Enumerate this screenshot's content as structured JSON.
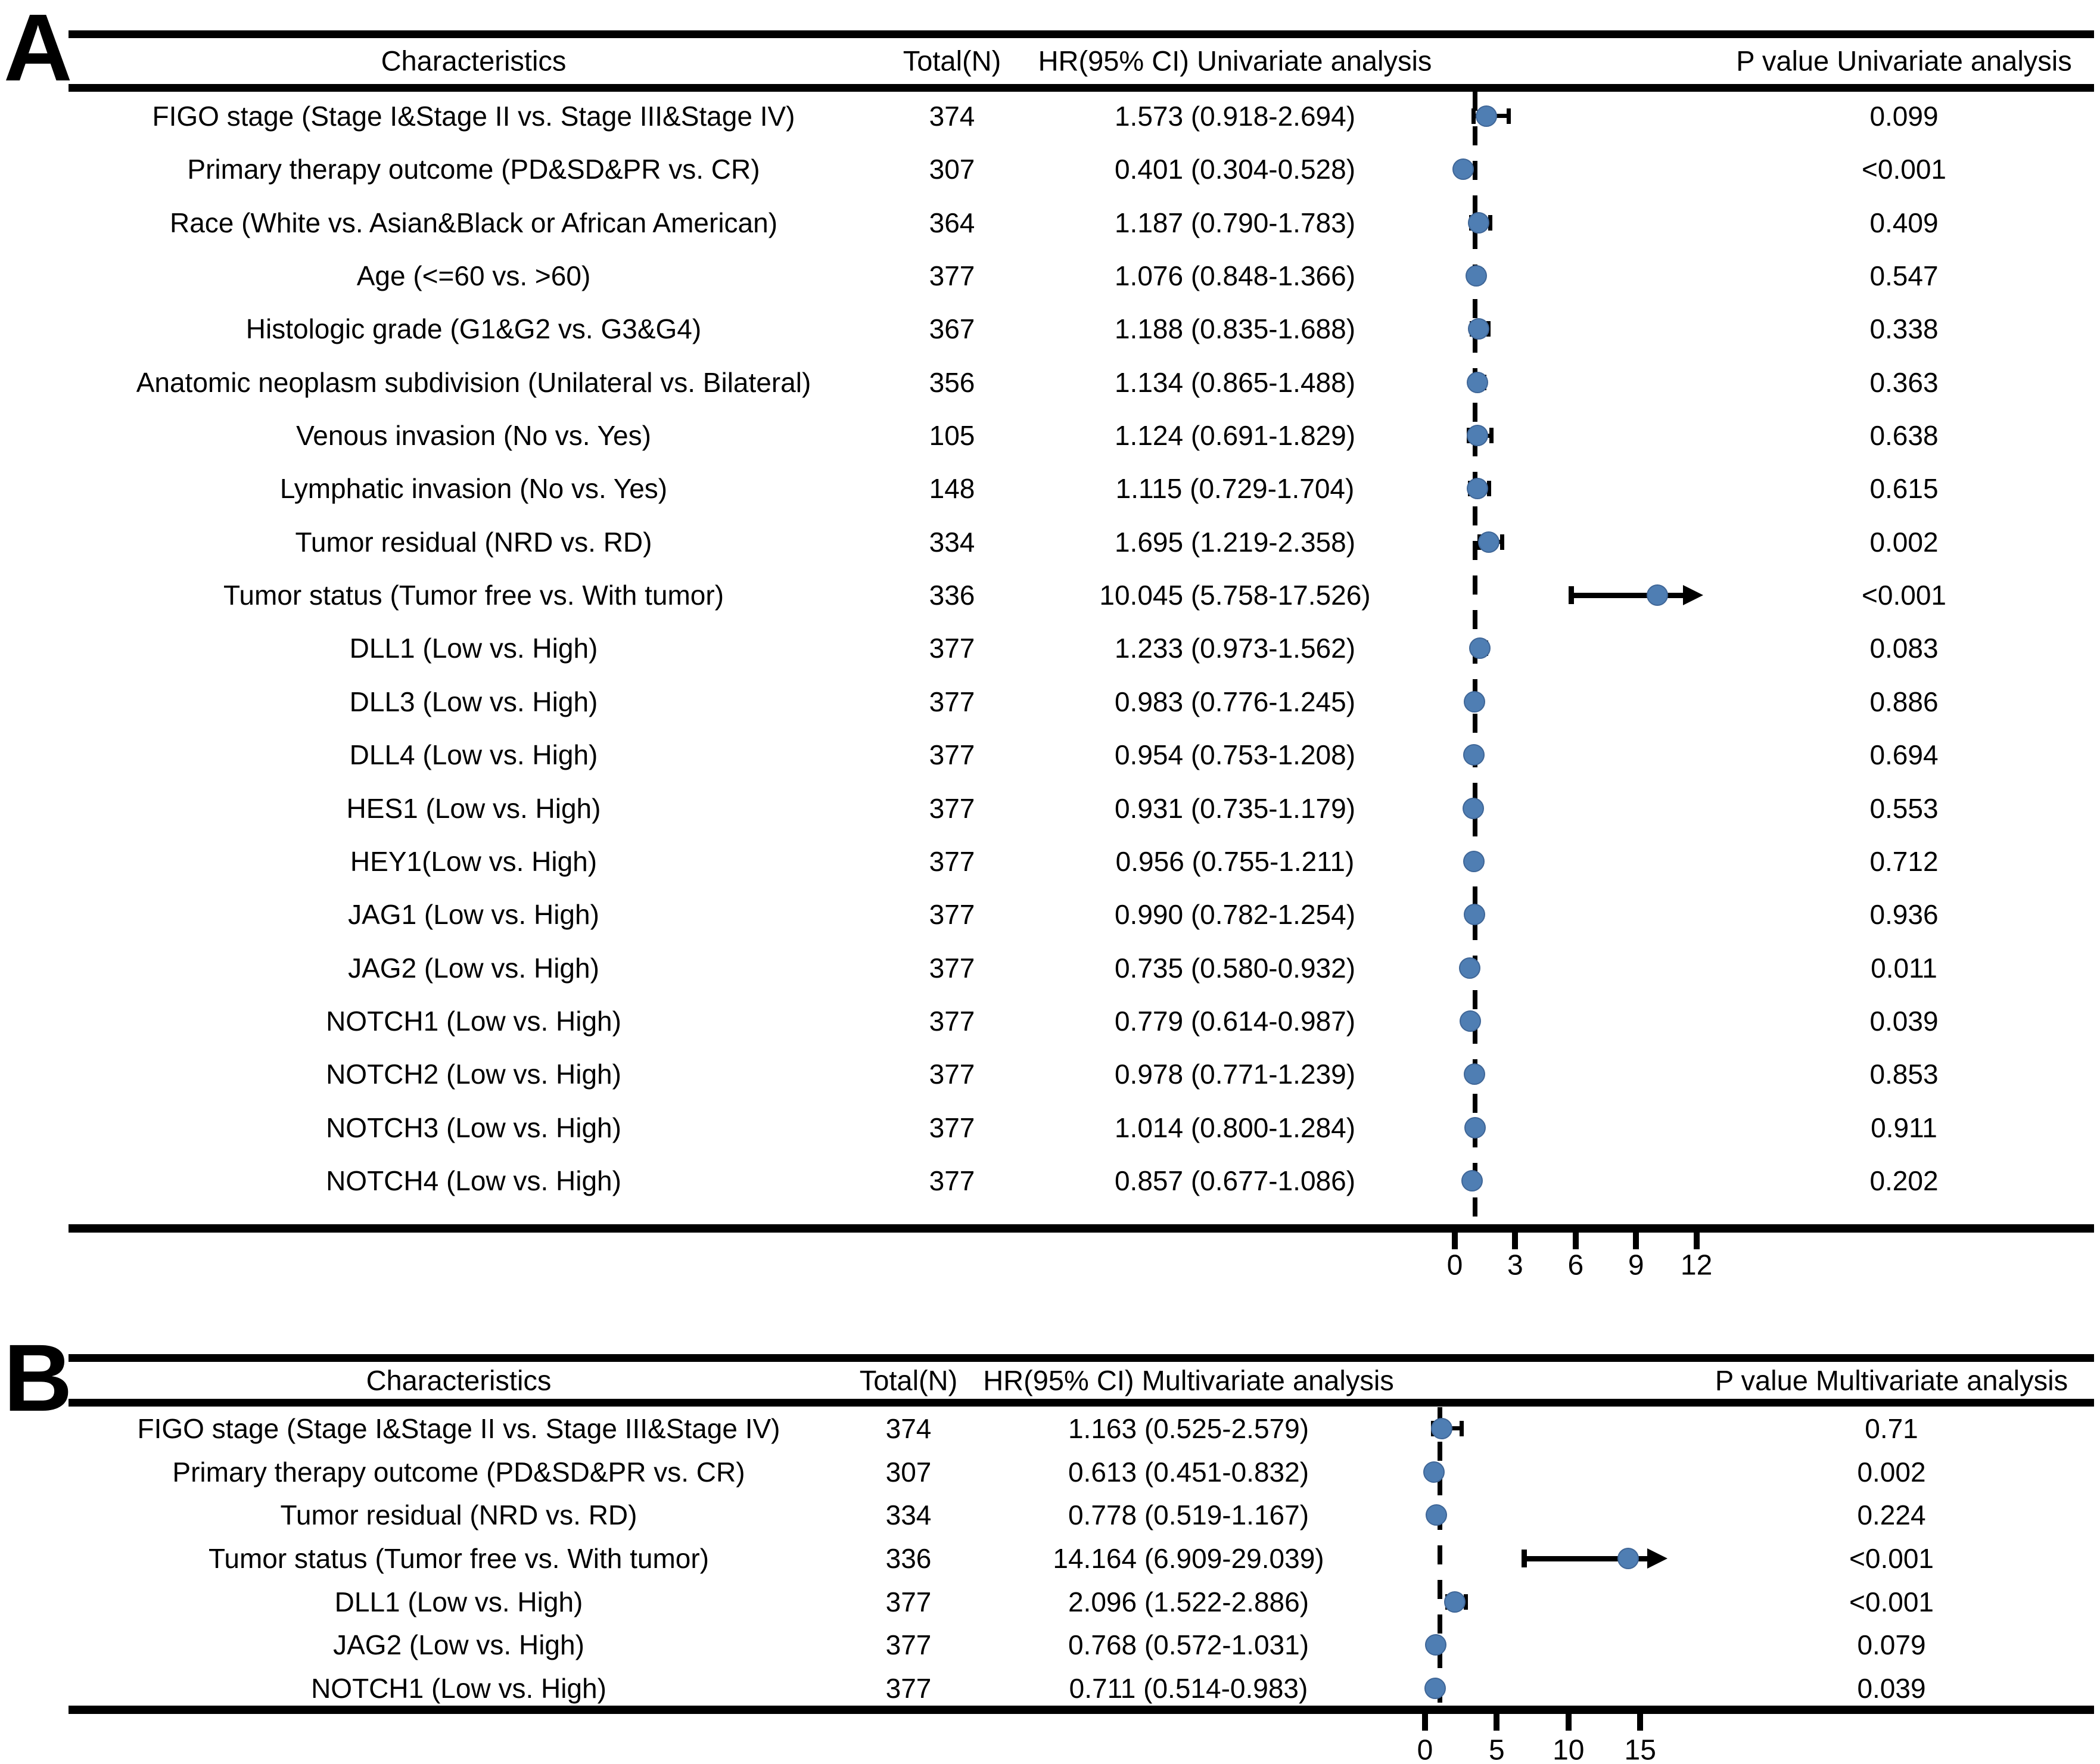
{
  "colors": {
    "marker": "#4F7EB3",
    "line": "#000000",
    "background": "#FFFFFF"
  },
  "chart_data": [
    {
      "type": "scatter",
      "subtype": "forest-plot",
      "panel": "A",
      "columns": [
        "Characteristics",
        "Total(N)",
        "HR(95% CI) Univariate analysis",
        "P value Univariate analysis"
      ],
      "axis": {
        "ticks": [
          0,
          3,
          6,
          9,
          12
        ],
        "reference_line": 1,
        "orientation": "horizontal",
        "grid": false
      },
      "rows": [
        {
          "characteristics": "FIGO stage (Stage I&Stage II vs. Stage III&Stage IV)",
          "total_n": "374",
          "hr_text": "1.573 (0.918-2.694)",
          "hr": 1.573,
          "ci_low": 0.918,
          "ci_high": 2.694,
          "p_value": "0.099",
          "arrow": false
        },
        {
          "characteristics": "Primary therapy outcome (PD&SD&PR vs. CR)",
          "total_n": "307",
          "hr_text": "0.401 (0.304-0.528)",
          "hr": 0.401,
          "ci_low": 0.304,
          "ci_high": 0.528,
          "p_value": "<0.001",
          "arrow": false
        },
        {
          "characteristics": "Race (White vs. Asian&Black or African American)",
          "total_n": "364",
          "hr_text": "1.187 (0.790-1.783)",
          "hr": 1.187,
          "ci_low": 0.79,
          "ci_high": 1.783,
          "p_value": "0.409",
          "arrow": false
        },
        {
          "characteristics": "Age (<=60 vs. >60)",
          "total_n": "377",
          "hr_text": "1.076 (0.848-1.366)",
          "hr": 1.076,
          "ci_low": 0.848,
          "ci_high": 1.366,
          "p_value": "0.547",
          "arrow": false
        },
        {
          "characteristics": "Histologic grade (G1&G2 vs. G3&G4)",
          "total_n": "367",
          "hr_text": "1.188 (0.835-1.688)",
          "hr": 1.188,
          "ci_low": 0.835,
          "ci_high": 1.688,
          "p_value": "0.338",
          "arrow": false
        },
        {
          "characteristics": "Anatomic neoplasm subdivision (Unilateral vs. Bilateral)",
          "total_n": "356",
          "hr_text": "1.134 (0.865-1.488)",
          "hr": 1.134,
          "ci_low": 0.865,
          "ci_high": 1.488,
          "p_value": "0.363",
          "arrow": false
        },
        {
          "characteristics": "Venous invasion (No vs. Yes)",
          "total_n": "105",
          "hr_text": "1.124 (0.691-1.829)",
          "hr": 1.124,
          "ci_low": 0.691,
          "ci_high": 1.829,
          "p_value": "0.638",
          "arrow": false
        },
        {
          "characteristics": "Lymphatic invasion (No vs. Yes)",
          "total_n": "148",
          "hr_text": "1.115 (0.729-1.704)",
          "hr": 1.115,
          "ci_low": 0.729,
          "ci_high": 1.704,
          "p_value": "0.615",
          "arrow": false
        },
        {
          "characteristics": "Tumor residual (NRD vs. RD)",
          "total_n": "334",
          "hr_text": "1.695 (1.219-2.358)",
          "hr": 1.695,
          "ci_low": 1.219,
          "ci_high": 2.358,
          "p_value": "0.002",
          "arrow": false
        },
        {
          "characteristics": "Tumor status (Tumor free vs. With tumor)",
          "total_n": "336",
          "hr_text": "10.045 (5.758-17.526)",
          "hr": 10.045,
          "ci_low": 5.758,
          "ci_high": 17.526,
          "p_value": "<0.001",
          "arrow": true
        },
        {
          "characteristics": "DLL1 (Low vs. High)",
          "total_n": "377",
          "hr_text": "1.233 (0.973-1.562)",
          "hr": 1.233,
          "ci_low": 0.973,
          "ci_high": 1.562,
          "p_value": "0.083",
          "arrow": false
        },
        {
          "characteristics": "DLL3 (Low vs. High)",
          "total_n": "377",
          "hr_text": "0.983 (0.776-1.245)",
          "hr": 0.983,
          "ci_low": 0.776,
          "ci_high": 1.245,
          "p_value": "0.886",
          "arrow": false
        },
        {
          "characteristics": "DLL4 (Low vs. High)",
          "total_n": "377",
          "hr_text": "0.954 (0.753-1.208)",
          "hr": 0.954,
          "ci_low": 0.753,
          "ci_high": 1.208,
          "p_value": "0.694",
          "arrow": false
        },
        {
          "characteristics": "HES1 (Low vs. High)",
          "total_n": "377",
          "hr_text": "0.931 (0.735-1.179)",
          "hr": 0.931,
          "ci_low": 0.735,
          "ci_high": 1.179,
          "p_value": "0.553",
          "arrow": false
        },
        {
          "characteristics": "HEY1(Low vs. High)",
          "total_n": "377",
          "hr_text": "0.956 (0.755-1.211)",
          "hr": 0.956,
          "ci_low": 0.755,
          "ci_high": 1.211,
          "p_value": "0.712",
          "arrow": false
        },
        {
          "characteristics": "JAG1 (Low vs. High)",
          "total_n": "377",
          "hr_text": "0.990 (0.782-1.254)",
          "hr": 0.99,
          "ci_low": 0.782,
          "ci_high": 1.254,
          "p_value": "0.936",
          "arrow": false
        },
        {
          "characteristics": "JAG2 (Low vs. High)",
          "total_n": "377",
          "hr_text": "0.735 (0.580-0.932)",
          "hr": 0.735,
          "ci_low": 0.58,
          "ci_high": 0.932,
          "p_value": "0.011",
          "arrow": false
        },
        {
          "characteristics": "NOTCH1 (Low vs. High)",
          "total_n": "377",
          "hr_text": "0.779 (0.614-0.987)",
          "hr": 0.779,
          "ci_low": 0.614,
          "ci_high": 0.987,
          "p_value": "0.039",
          "arrow": false
        },
        {
          "characteristics": "NOTCH2 (Low vs. High)",
          "total_n": "377",
          "hr_text": "0.978 (0.771-1.239)",
          "hr": 0.978,
          "ci_low": 0.771,
          "ci_high": 1.239,
          "p_value": "0.853",
          "arrow": false
        },
        {
          "characteristics": "NOTCH3 (Low vs. High)",
          "total_n": "377",
          "hr_text": "1.014 (0.800-1.284)",
          "hr": 1.014,
          "ci_low": 0.8,
          "ci_high": 1.284,
          "p_value": "0.911",
          "arrow": false
        },
        {
          "characteristics": "NOTCH4 (Low vs. High)",
          "total_n": "377",
          "hr_text": "0.857 (0.677-1.086)",
          "hr": 0.857,
          "ci_low": 0.677,
          "ci_high": 1.086,
          "p_value": "0.202",
          "arrow": false
        }
      ]
    },
    {
      "type": "scatter",
      "subtype": "forest-plot",
      "panel": "B",
      "columns": [
        "Characteristics",
        "Total(N)",
        "HR(95% CI) Multivariate analysis",
        "P value Multivariate analysis"
      ],
      "axis": {
        "ticks": [
          0,
          5,
          10,
          15
        ],
        "reference_line": 1,
        "orientation": "horizontal",
        "grid": false
      },
      "rows": [
        {
          "characteristics": "FIGO stage (Stage I&Stage II vs. Stage III&Stage IV)",
          "total_n": "374",
          "hr_text": "1.163 (0.525-2.579)",
          "hr": 1.163,
          "ci_low": 0.525,
          "ci_high": 2.579,
          "p_value": "0.71",
          "arrow": false
        },
        {
          "characteristics": "Primary therapy outcome (PD&SD&PR vs. CR)",
          "total_n": "307",
          "hr_text": "0.613 (0.451-0.832)",
          "hr": 0.613,
          "ci_low": 0.451,
          "ci_high": 0.832,
          "p_value": "0.002",
          "arrow": false
        },
        {
          "characteristics": "Tumor residual (NRD vs. RD)",
          "total_n": "334",
          "hr_text": "0.778 (0.519-1.167)",
          "hr": 0.778,
          "ci_low": 0.519,
          "ci_high": 1.167,
          "p_value": "0.224",
          "arrow": false
        },
        {
          "characteristics": "Tumor status (Tumor free vs. With tumor)",
          "total_n": "336",
          "hr_text": "14.164 (6.909-29.039)",
          "hr": 14.164,
          "ci_low": 6.909,
          "ci_high": 29.039,
          "p_value": "<0.001",
          "arrow": true
        },
        {
          "characteristics": "DLL1 (Low vs. High)",
          "total_n": "377",
          "hr_text": "2.096 (1.522-2.886)",
          "hr": 2.096,
          "ci_low": 1.522,
          "ci_high": 2.886,
          "p_value": "<0.001",
          "arrow": false
        },
        {
          "characteristics": "JAG2 (Low vs. High)",
          "total_n": "377",
          "hr_text": "0.768 (0.572-1.031)",
          "hr": 0.768,
          "ci_low": 0.572,
          "ci_high": 1.031,
          "p_value": "0.079",
          "arrow": false
        },
        {
          "characteristics": "NOTCH1 (Low vs. High)",
          "total_n": "377",
          "hr_text": "0.711 (0.514-0.983)",
          "hr": 0.711,
          "ci_low": 0.514,
          "ci_high": 0.983,
          "p_value": "0.039",
          "arrow": false
        }
      ]
    }
  ]
}
